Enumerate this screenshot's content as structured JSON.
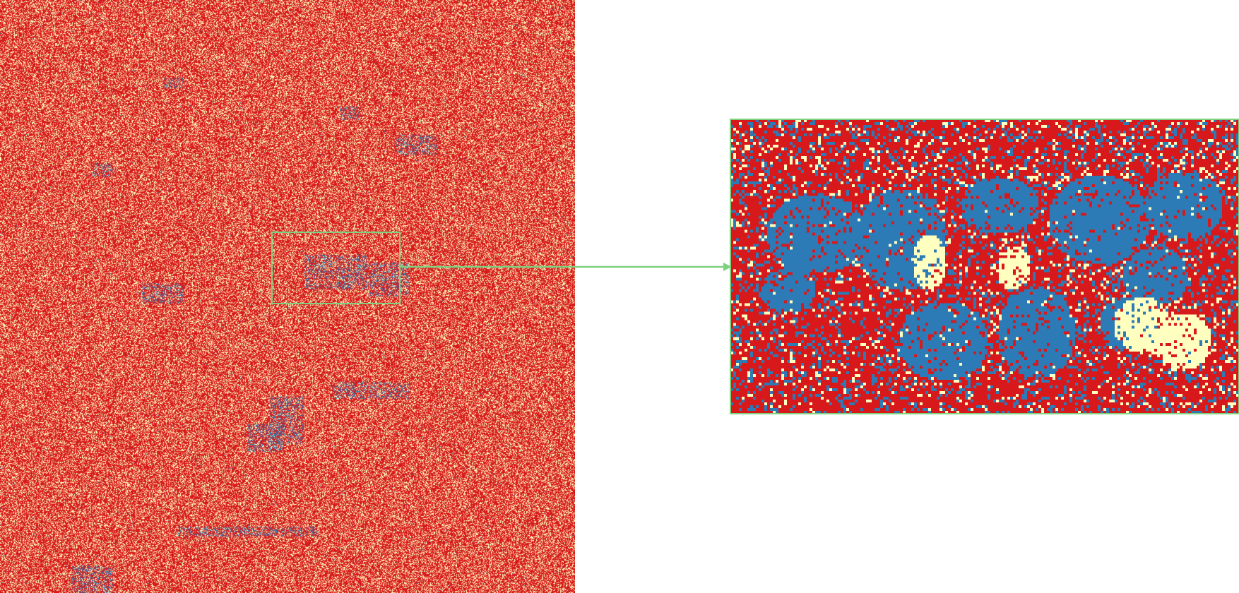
{
  "figure": {
    "panels": [
      "overview-classification-map",
      "zoomed-detail-map"
    ],
    "class_colors": {
      "red": "#d7191c",
      "cream": "#ffffbf",
      "blue": "#2c7bb6"
    },
    "highlight_color": "#7fd17f"
  }
}
